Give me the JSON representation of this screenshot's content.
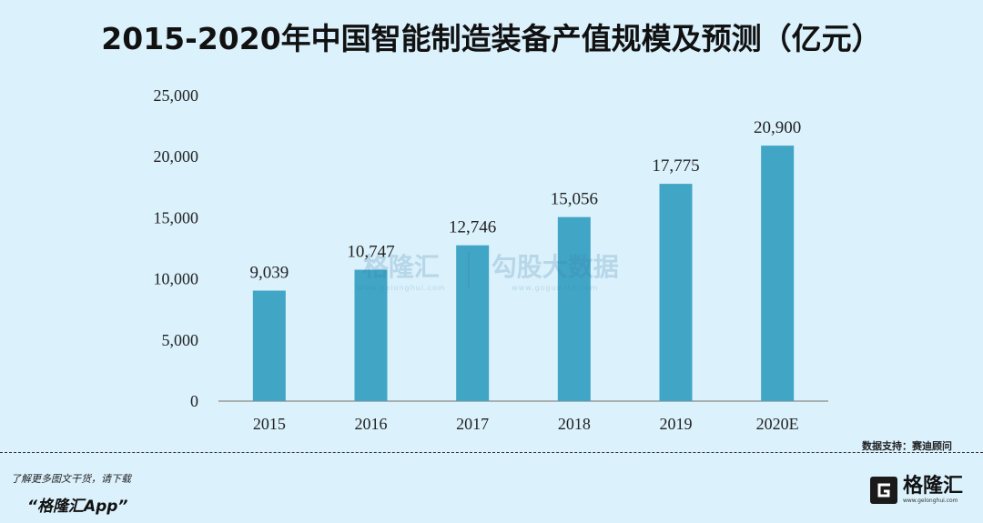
{
  "title": "2015-2020年中国智能制造装备产值规模及预测（亿元）",
  "source": "数据支持：赛迪顾问",
  "footer": {
    "note": "了解更多图文干货，请下载",
    "app": "“格隆汇App”"
  },
  "brand": {
    "name": "格隆汇",
    "url": "www.gelonghui.com",
    "icon": "gelonghui-logo-icon"
  },
  "watermarks": {
    "left": {
      "name": "格隆汇",
      "url": "www.gelonghui.com"
    },
    "right": {
      "name": "勾股大数据",
      "url": "www.gogudata.com"
    }
  },
  "colors": {
    "bar": "#41a5c6",
    "background": "#dbf1fc"
  },
  "chart_data": {
    "type": "bar",
    "title": "2015-2020年中国智能制造装备产值规模及预测（亿元）",
    "categories": [
      "2015",
      "2016",
      "2017",
      "2018",
      "2019",
      "2020E"
    ],
    "values": [
      9039,
      10747,
      12746,
      15056,
      17775,
      20900
    ],
    "value_labels": [
      "9,039",
      "10,747",
      "12,746",
      "15,056",
      "17,775",
      "20,900"
    ],
    "yticks": [
      0,
      5000,
      10000,
      15000,
      20000,
      25000
    ],
    "ytick_labels": [
      "0",
      "5,000",
      "10,000",
      "15,000",
      "20,000",
      "25,000"
    ],
    "ylim": [
      0,
      25000
    ],
    "xlabel": "",
    "ylabel": "",
    "grid": false
  }
}
